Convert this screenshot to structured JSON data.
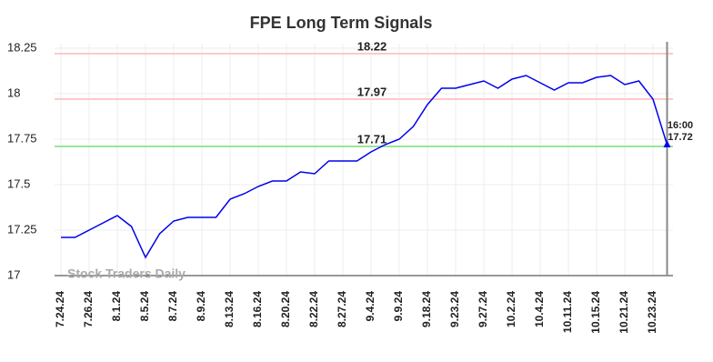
{
  "chart_data": {
    "type": "line",
    "title": "FPE Long Term Signals",
    "categories": [
      "7.24.24",
      null,
      "7.26.24",
      null,
      "8.1.24",
      null,
      "8.5.24",
      null,
      "8.7.24",
      null,
      "8.9.24",
      null,
      "8.13.24",
      null,
      "8.16.24",
      null,
      "8.20.24",
      null,
      "8.22.24",
      null,
      "8.27.24",
      null,
      "9.4.24",
      null,
      "9.9.24",
      null,
      "9.18.24",
      null,
      "9.23.24",
      null,
      "9.27.24",
      null,
      "10.2.24",
      null,
      "10.4.24",
      null,
      "10.11.24",
      null,
      "10.15.24",
      null,
      "10.21.24",
      null,
      "10.23.24",
      null
    ],
    "values": [
      17.21,
      17.21,
      17.25,
      17.29,
      17.33,
      17.27,
      17.1,
      17.23,
      17.3,
      17.32,
      17.32,
      17.32,
      17.42,
      17.45,
      17.49,
      17.52,
      17.52,
      17.57,
      17.56,
      17.63,
      17.63,
      17.63,
      17.68,
      17.72,
      17.75,
      17.82,
      17.94,
      18.03,
      18.03,
      18.05,
      18.07,
      18.03,
      18.08,
      18.1,
      18.06,
      18.02,
      18.06,
      18.06,
      18.09,
      18.1,
      18.05,
      18.07,
      17.97,
      17.72
    ],
    "color": "#0000ee",
    "ylim": [
      17,
      18.275
    ],
    "yticks": [
      17,
      17.25,
      17.5,
      17.75,
      18,
      18.25
    ],
    "grid": true,
    "hlines": [
      {
        "value": 18.22,
        "line_color": "#ffc8c8",
        "label_color": "#8b0000"
      },
      {
        "value": 17.97,
        "line_color": "#ffc8c8",
        "label_color": "#8b0000"
      },
      {
        "value": 17.71,
        "line_color": "#99e699",
        "label_color": "#006400"
      }
    ],
    "end_time": "16:00",
    "watermark": "Stock Traders Daily"
  }
}
